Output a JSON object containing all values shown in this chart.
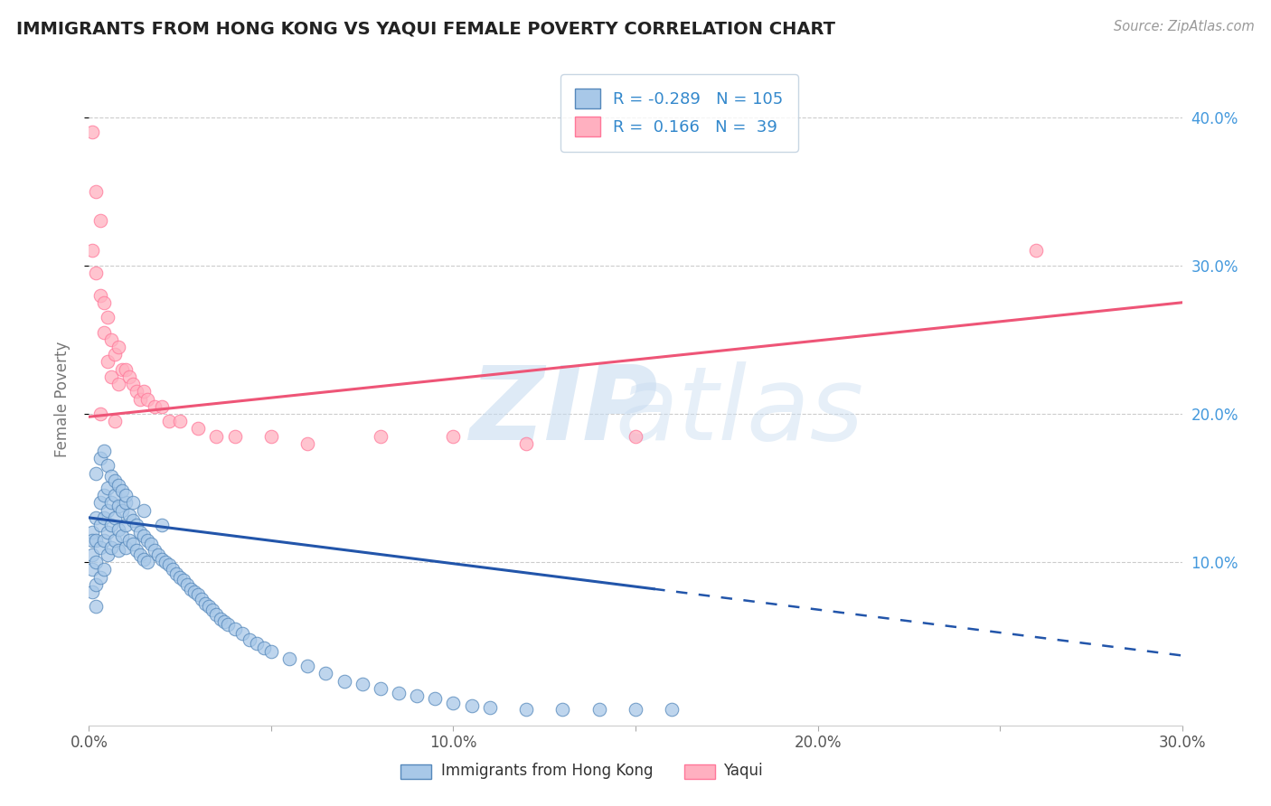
{
  "title": "IMMIGRANTS FROM HONG KONG VS YAQUI FEMALE POVERTY CORRELATION CHART",
  "source": "Source: ZipAtlas.com",
  "ylabel": "Female Poverty",
  "legend_label1": "Immigrants from Hong Kong",
  "legend_label2": "Yaqui",
  "R1": -0.289,
  "N1": 105,
  "R2": 0.166,
  "N2": 39,
  "xlim": [
    0.0,
    0.3
  ],
  "ylim": [
    -0.01,
    0.43
  ],
  "xtick_labels": [
    "0.0%",
    "",
    "10.0%",
    "",
    "20.0%",
    "",
    "30.0%"
  ],
  "xtick_vals": [
    0.0,
    0.05,
    0.1,
    0.15,
    0.2,
    0.25,
    0.3
  ],
  "ytick_labels_right": [
    "10.0%",
    "20.0%",
    "30.0%",
    "40.0%"
  ],
  "ytick_vals": [
    0.1,
    0.2,
    0.3,
    0.4
  ],
  "color_blue_fill": "#A8C8E8",
  "color_blue_edge": "#5588BB",
  "color_pink_fill": "#FFB0C0",
  "color_pink_edge": "#FF7799",
  "color_trendline_blue": "#2255AA",
  "color_trendline_pink": "#EE5577",
  "color_grid": "#CCCCCC",
  "blue_scatter_x": [
    0.001,
    0.001,
    0.001,
    0.001,
    0.001,
    0.002,
    0.002,
    0.002,
    0.002,
    0.002,
    0.003,
    0.003,
    0.003,
    0.003,
    0.004,
    0.004,
    0.004,
    0.004,
    0.005,
    0.005,
    0.005,
    0.005,
    0.006,
    0.006,
    0.006,
    0.007,
    0.007,
    0.007,
    0.008,
    0.008,
    0.008,
    0.009,
    0.009,
    0.01,
    0.01,
    0.01,
    0.011,
    0.011,
    0.012,
    0.012,
    0.013,
    0.013,
    0.014,
    0.014,
    0.015,
    0.015,
    0.016,
    0.016,
    0.017,
    0.018,
    0.019,
    0.02,
    0.021,
    0.022,
    0.023,
    0.024,
    0.025,
    0.026,
    0.027,
    0.028,
    0.029,
    0.03,
    0.031,
    0.032,
    0.033,
    0.034,
    0.035,
    0.036,
    0.037,
    0.038,
    0.04,
    0.042,
    0.044,
    0.046,
    0.048,
    0.05,
    0.055,
    0.06,
    0.065,
    0.07,
    0.075,
    0.08,
    0.085,
    0.09,
    0.095,
    0.1,
    0.105,
    0.11,
    0.12,
    0.13,
    0.14,
    0.15,
    0.16,
    0.002,
    0.003,
    0.004,
    0.005,
    0.006,
    0.007,
    0.008,
    0.009,
    0.01,
    0.012,
    0.015,
    0.02
  ],
  "blue_scatter_y": [
    0.12,
    0.105,
    0.115,
    0.095,
    0.08,
    0.13,
    0.115,
    0.1,
    0.085,
    0.07,
    0.14,
    0.125,
    0.11,
    0.09,
    0.145,
    0.13,
    0.115,
    0.095,
    0.15,
    0.135,
    0.12,
    0.105,
    0.14,
    0.125,
    0.11,
    0.145,
    0.13,
    0.115,
    0.138,
    0.122,
    0.108,
    0.135,
    0.118,
    0.14,
    0.125,
    0.11,
    0.132,
    0.115,
    0.128,
    0.112,
    0.125,
    0.108,
    0.12,
    0.105,
    0.118,
    0.102,
    0.115,
    0.1,
    0.112,
    0.108,
    0.105,
    0.102,
    0.1,
    0.098,
    0.095,
    0.092,
    0.09,
    0.088,
    0.085,
    0.082,
    0.08,
    0.078,
    0.075,
    0.072,
    0.07,
    0.068,
    0.065,
    0.062,
    0.06,
    0.058,
    0.055,
    0.052,
    0.048,
    0.045,
    0.042,
    0.04,
    0.035,
    0.03,
    0.025,
    0.02,
    0.018,
    0.015,
    0.012,
    0.01,
    0.008,
    0.005,
    0.003,
    0.002,
    0.001,
    0.001,
    0.001,
    0.001,
    0.001,
    0.16,
    0.17,
    0.175,
    0.165,
    0.158,
    0.155,
    0.152,
    0.148,
    0.145,
    0.14,
    0.135,
    0.125
  ],
  "pink_scatter_x": [
    0.001,
    0.001,
    0.002,
    0.002,
    0.003,
    0.003,
    0.004,
    0.004,
    0.005,
    0.005,
    0.006,
    0.006,
    0.007,
    0.008,
    0.008,
    0.009,
    0.01,
    0.011,
    0.012,
    0.013,
    0.014,
    0.015,
    0.016,
    0.018,
    0.02,
    0.022,
    0.025,
    0.03,
    0.035,
    0.04,
    0.05,
    0.06,
    0.08,
    0.1,
    0.12,
    0.15,
    0.26,
    0.003,
    0.007
  ],
  "pink_scatter_y": [
    0.39,
    0.31,
    0.35,
    0.295,
    0.33,
    0.28,
    0.275,
    0.255,
    0.265,
    0.235,
    0.25,
    0.225,
    0.24,
    0.245,
    0.22,
    0.23,
    0.23,
    0.225,
    0.22,
    0.215,
    0.21,
    0.215,
    0.21,
    0.205,
    0.205,
    0.195,
    0.195,
    0.19,
    0.185,
    0.185,
    0.185,
    0.18,
    0.185,
    0.185,
    0.18,
    0.185,
    0.31,
    0.2,
    0.195
  ],
  "trendline_blue_x0": 0.0,
  "trendline_blue_y0": 0.13,
  "trendline_blue_x1": 0.155,
  "trendline_blue_y1": 0.082,
  "trendline_blue_dash_x0": 0.155,
  "trendline_blue_dash_x1": 0.3,
  "trendline_pink_x0": 0.0,
  "trendline_pink_y0": 0.198,
  "trendline_pink_x1": 0.3,
  "trendline_pink_y1": 0.275
}
